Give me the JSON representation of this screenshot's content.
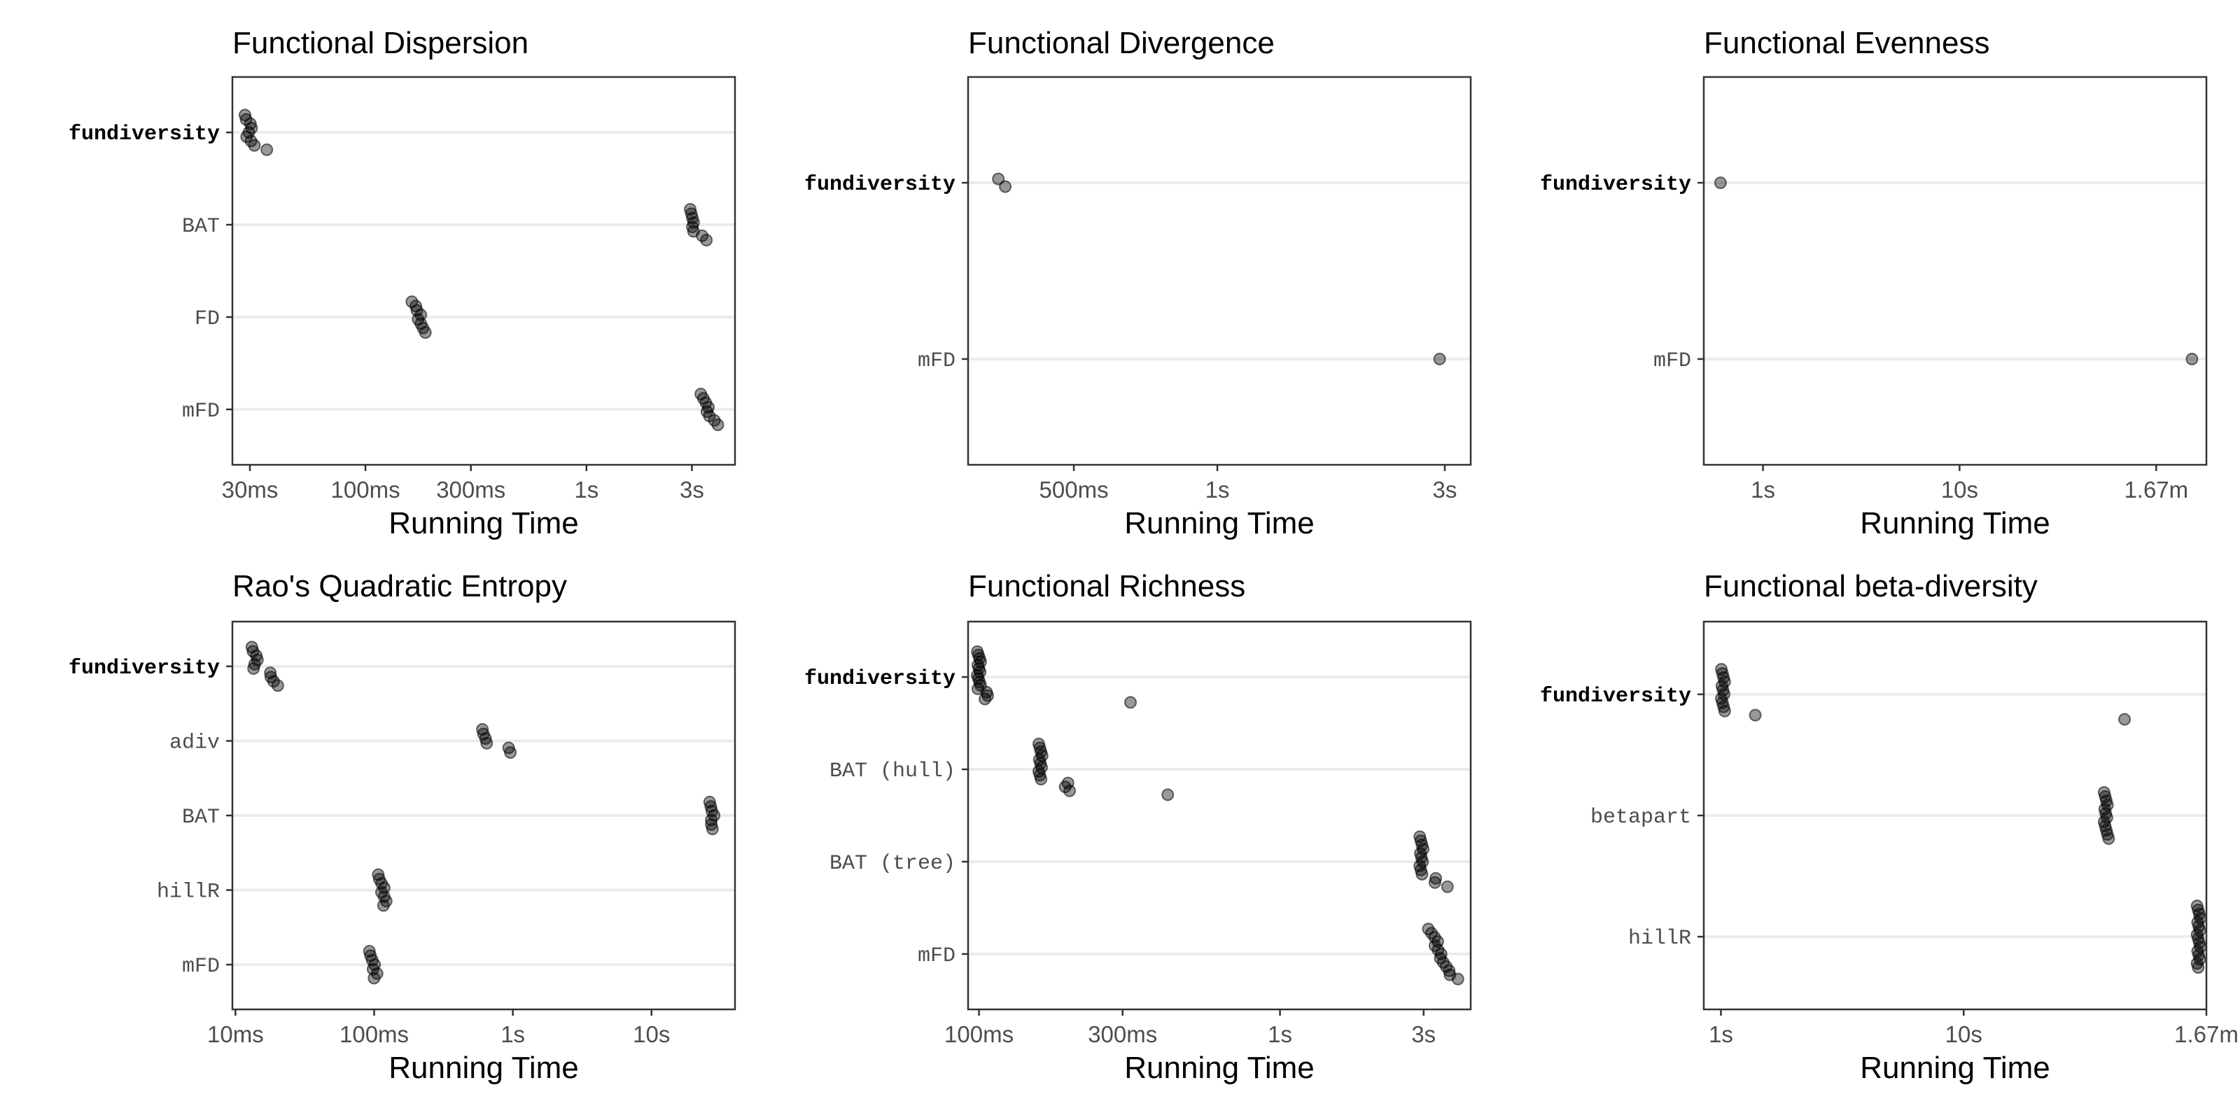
{
  "chart_data": [
    {
      "type": "scatter",
      "title": "Functional Dispersion",
      "xlabel": "Running Time",
      "x_scale": "log",
      "x_unit": "seconds",
      "xlim": [
        0.025,
        4.7
      ],
      "x_ticks": [
        {
          "value": 0.03,
          "label": "30ms"
        },
        {
          "value": 0.1,
          "label": "100ms"
        },
        {
          "value": 0.3,
          "label": "300ms"
        },
        {
          "value": 1,
          "label": "1s"
        },
        {
          "value": 3,
          "label": "3s"
        }
      ],
      "categories": [
        "fundiversity",
        "BAT",
        "FD",
        "mFD"
      ],
      "bold_category": "fundiversity",
      "series": [
        {
          "values": [
            {
              "y": "fundiversity",
              "x": [
                0.029,
                0.029,
                0.03,
                0.03,
                0.03,
                0.029,
                0.03,
                0.032,
                0.036
              ]
            },
            {
              "y": "BAT",
              "x": [
                3.0,
                3.0,
                3.0,
                3.0,
                3.05,
                3.05,
                3.3,
                3.55
              ]
            },
            {
              "y": "FD",
              "x": [
                0.165,
                0.17,
                0.17,
                0.175,
                0.175,
                0.178,
                0.18,
                0.19
              ]
            },
            {
              "y": "mFD",
              "x": [
                3.35,
                3.4,
                3.45,
                3.5,
                3.55,
                3.6,
                3.75,
                4.0
              ]
            }
          ]
        }
      ]
    },
    {
      "type": "scatter",
      "title": "Functional Divergence",
      "xlabel": "Running Time",
      "x_scale": "log",
      "x_unit": "seconds",
      "xlim": [
        0.3,
        3.4
      ],
      "x_ticks": [
        {
          "value": 0.5,
          "label": "500ms"
        },
        {
          "value": 1,
          "label": "1s"
        },
        {
          "value": 3,
          "label": "3s"
        }
      ],
      "categories": [
        "fundiversity",
        "mFD"
      ],
      "bold_category": "fundiversity",
      "series": [
        {
          "values": [
            {
              "y": "fundiversity",
              "x": [
                0.35,
                0.36
              ]
            },
            {
              "y": "mFD",
              "x": [
                2.95
              ]
            }
          ]
        }
      ]
    },
    {
      "type": "scatter",
      "title": "Functional Evenness",
      "xlabel": "Running Time",
      "x_scale": "log",
      "x_unit": "seconds",
      "xlim": [
        0.5,
        180
      ],
      "x_ticks": [
        {
          "value": 1,
          "label": "1s"
        },
        {
          "value": 10,
          "label": "10s"
        },
        {
          "value": 100,
          "label": "1.67m"
        }
      ],
      "categories": [
        "fundiversity",
        "mFD"
      ],
      "bold_category": "fundiversity",
      "series": [
        {
          "values": [
            {
              "y": "fundiversity",
              "x": [
                0.62
              ]
            },
            {
              "y": "mFD",
              "x": [
                155
              ]
            }
          ]
        }
      ]
    },
    {
      "type": "scatter",
      "title": "Rao's Quadratic Entropy",
      "xlabel": "Running Time",
      "x_scale": "log",
      "x_unit": "seconds",
      "xlim": [
        0.0095,
        40
      ],
      "x_ticks": [
        {
          "value": 0.01,
          "label": "10ms"
        },
        {
          "value": 0.1,
          "label": "100ms"
        },
        {
          "value": 1,
          "label": "1s"
        },
        {
          "value": 10,
          "label": "10s"
        }
      ],
      "categories": [
        "fundiversity",
        "adiv",
        "BAT",
        "hillR",
        "mFD"
      ],
      "bold_category": "fundiversity",
      "series": [
        {
          "values": [
            {
              "y": "fundiversity",
              "x": [
                0.0135,
                0.0135,
                0.014,
                0.014,
                0.014,
                0.0135,
                0.0175,
                0.0185,
                0.019,
                0.02
              ]
            },
            {
              "y": "adiv",
              "x": [
                0.62,
                0.62,
                0.63,
                0.63,
                0.95,
                0.96
              ]
            },
            {
              "y": "BAT",
              "x": [
                27,
                27,
                27,
                27.5,
                27.5,
                27,
                27
              ]
            },
            {
              "y": "hillR",
              "x": [
                0.11,
                0.11,
                0.112,
                0.115,
                0.115,
                0.118,
                0.12,
                0.12
              ]
            },
            {
              "y": "mFD",
              "x": [
                0.095,
                0.095,
                0.096,
                0.098,
                0.1,
                0.105,
                0.098
              ]
            }
          ]
        }
      ]
    },
    {
      "type": "scatter",
      "title": "Functional Richness",
      "xlabel": "Running Time",
      "x_scale": "log",
      "x_unit": "seconds",
      "xlim": [
        0.092,
        4.3
      ],
      "x_ticks": [
        {
          "value": 0.1,
          "label": "100ms"
        },
        {
          "value": 0.3,
          "label": "300ms"
        },
        {
          "value": 1,
          "label": "1s"
        },
        {
          "value": 3,
          "label": "3s"
        }
      ],
      "categories": [
        "fundiversity",
        "BAT (hull)",
        "BAT (tree)",
        "mFD"
      ],
      "bold_category": "fundiversity",
      "series": [
        {
          "values": [
            {
              "y": "fundiversity",
              "x": [
                0.1,
                0.1,
                0.1,
                0.1,
                0.1,
                0.1,
                0.1,
                0.1,
                0.1,
                0.1,
                0.1,
                0.1,
                0.106,
                0.106,
                0.106,
                0.32
              ]
            },
            {
              "y": "BAT (hull)",
              "x": [
                0.16,
                0.16,
                0.16,
                0.16,
                0.16,
                0.16,
                0.16,
                0.16,
                0.16,
                0.16,
                0.195,
                0.195,
                0.2,
                0.42
              ]
            },
            {
              "y": "BAT (tree)",
              "x": [
                2.95,
                2.95,
                2.95,
                2.95,
                2.95,
                2.95,
                2.95,
                2.95,
                2.95,
                2.95,
                3.25,
                3.3,
                3.6
              ]
            },
            {
              "y": "mFD",
              "x": [
                3.15,
                3.2,
                3.25,
                3.3,
                3.3,
                3.35,
                3.4,
                3.45,
                3.5,
                3.55,
                3.6,
                3.7,
                3.9
              ]
            }
          ]
        }
      ]
    },
    {
      "type": "scatter",
      "title": "Functional beta-diversity",
      "xlabel": "Running Time",
      "x_scale": "log",
      "x_unit": "seconds",
      "xlim": [
        0.85,
        100
      ],
      "x_ticks": [
        {
          "value": 1,
          "label": "1s"
        },
        {
          "value": 10,
          "label": "10s"
        },
        {
          "value": 100,
          "label": "1.67m"
        }
      ],
      "categories": [
        "fundiversity",
        "betapart",
        "hillR"
      ],
      "bold_category": "fundiversity",
      "series": [
        {
          "values": [
            {
              "y": "fundiversity",
              "x": [
                1.02,
                1.02,
                1.02,
                1.02,
                1.02,
                1.02,
                1.02,
                1.02,
                1.02,
                1.02,
                1.02,
                1.4,
                46
              ]
            },
            {
              "y": "betapart",
              "x": [
                38.5,
                38.5,
                38.5,
                38.5,
                38.5,
                38.5,
                38.5,
                38.5,
                38.5,
                38.5,
                38.5,
                40
              ]
            },
            {
              "y": "hillR",
              "x": [
                93,
                93,
                93,
                93,
                93,
                93,
                93,
                93,
                93,
                93,
                93,
                93,
                93,
                93,
                93,
                93
              ]
            }
          ]
        }
      ]
    }
  ]
}
